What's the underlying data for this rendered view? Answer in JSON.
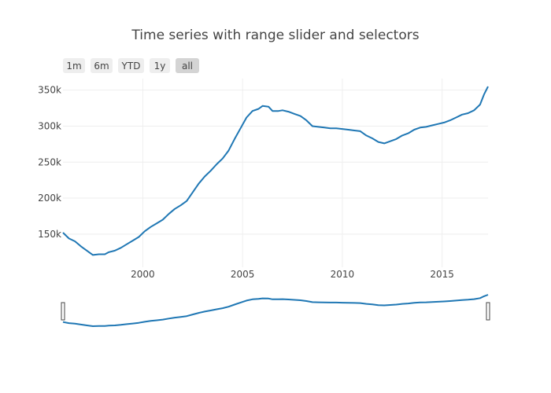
{
  "chart_data": {
    "type": "line",
    "title": "Time series with range slider and selectors",
    "xlabel": "",
    "ylabel": "",
    "xlim": [
      1996.0,
      2017.3
    ],
    "ylim": [
      104000,
      366000
    ],
    "grid": true,
    "range_selector": {
      "buttons": [
        "1m",
        "6m",
        "YTD",
        "1y",
        "all"
      ],
      "active": "all"
    },
    "x_ticks": [
      {
        "value": 2000,
        "label": "2000"
      },
      {
        "value": 2005,
        "label": "2005"
      },
      {
        "value": 2010,
        "label": "2010"
      },
      {
        "value": 2015,
        "label": "2015"
      }
    ],
    "y_ticks": [
      {
        "value": 150000,
        "label": "150k"
      },
      {
        "value": 200000,
        "label": "200k"
      },
      {
        "value": 250000,
        "label": "250k"
      },
      {
        "value": 300000,
        "label": "300k"
      },
      {
        "value": 350000,
        "label": "350k"
      }
    ],
    "series": [
      {
        "x": [
          1996.0,
          1996.3,
          1996.6,
          1996.9,
          1997.2,
          1997.5,
          1997.8,
          1998.1,
          1998.3,
          1998.6,
          1998.9,
          1999.2,
          1999.5,
          1999.8,
          2000.1,
          2000.4,
          2000.7,
          2001.0,
          2001.3,
          2001.6,
          2001.9,
          2002.2,
          2002.5,
          2002.8,
          2003.1,
          2003.4,
          2003.7,
          2004.0,
          2004.3,
          2004.6,
          2004.9,
          2005.2,
          2005.5,
          2005.8,
          2006.0,
          2006.3,
          2006.5,
          2006.8,
          2007.0,
          2007.3,
          2007.6,
          2007.9,
          2008.2,
          2008.5,
          2008.8,
          2009.1,
          2009.4,
          2009.7,
          2010.0,
          2010.3,
          2010.6,
          2010.9,
          2011.2,
          2011.5,
          2011.8,
          2012.1,
          2012.4,
          2012.7,
          2013.0,
          2013.3,
          2013.6,
          2013.9,
          2014.2,
          2014.5,
          2014.8,
          2015.1,
          2015.4,
          2015.7,
          2016.0,
          2016.3,
          2016.6,
          2016.9,
          2017.1,
          2017.3
        ],
        "values": [
          152000,
          144000,
          140000,
          133000,
          127000,
          121000,
          122000,
          122000,
          125000,
          127000,
          131000,
          136000,
          141000,
          146000,
          154000,
          160000,
          165000,
          170000,
          178000,
          185000,
          190000,
          196000,
          208000,
          220000,
          230000,
          238000,
          247000,
          255000,
          266000,
          282000,
          297000,
          312000,
          321000,
          324000,
          328000,
          327000,
          321000,
          321000,
          322000,
          320000,
          317000,
          314000,
          308000,
          300000,
          299000,
          298000,
          297000,
          297000,
          296000,
          295000,
          294000,
          293000,
          287000,
          283000,
          278000,
          276000,
          279000,
          282000,
          287000,
          290000,
          295000,
          298000,
          299000,
          301000,
          303000,
          305000,
          308000,
          312000,
          316000,
          318000,
          322000,
          330000,
          344000,
          355000
        ]
      }
    ]
  }
}
